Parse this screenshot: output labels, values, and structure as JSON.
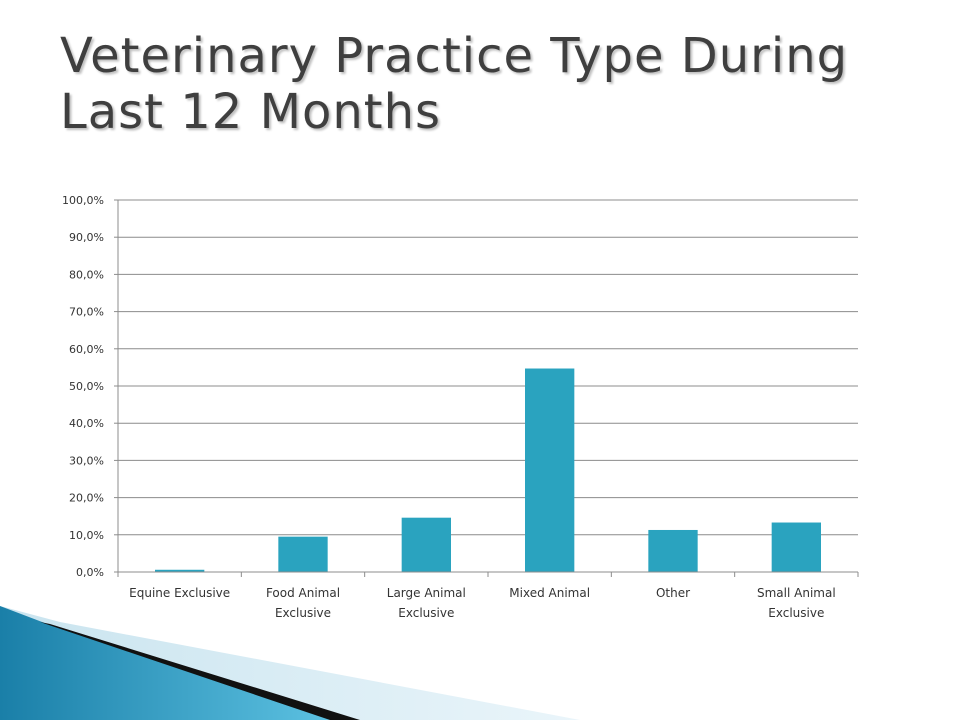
{
  "slide": {
    "title_line1": "Veterinary Practice Type During",
    "title_line2": "Last 12 Months"
  },
  "colors": {
    "bar": "#2aa3bf",
    "grid": "#8c8c8c",
    "accent": "#1e8fb8"
  },
  "chart_data": {
    "type": "bar",
    "title": "",
    "xlabel": "",
    "ylabel": "",
    "ylim": [
      0,
      100
    ],
    "grid": true,
    "yticks": [
      "0,0%",
      "10,0%",
      "20,0%",
      "30,0%",
      "40,0%",
      "50,0%",
      "60,0%",
      "70,0%",
      "80,0%",
      "90,0%",
      "100,0%"
    ],
    "categories": [
      [
        "Equine Exclusive"
      ],
      [
        "Food Animal",
        "Exclusive"
      ],
      [
        "Large Animal",
        "Exclusive"
      ],
      [
        "Mixed Animal"
      ],
      [
        "Other"
      ],
      [
        "Small Animal",
        "Exclusive"
      ]
    ],
    "values": [
      0.6,
      9.5,
      14.6,
      54.7,
      11.3,
      13.3
    ]
  }
}
